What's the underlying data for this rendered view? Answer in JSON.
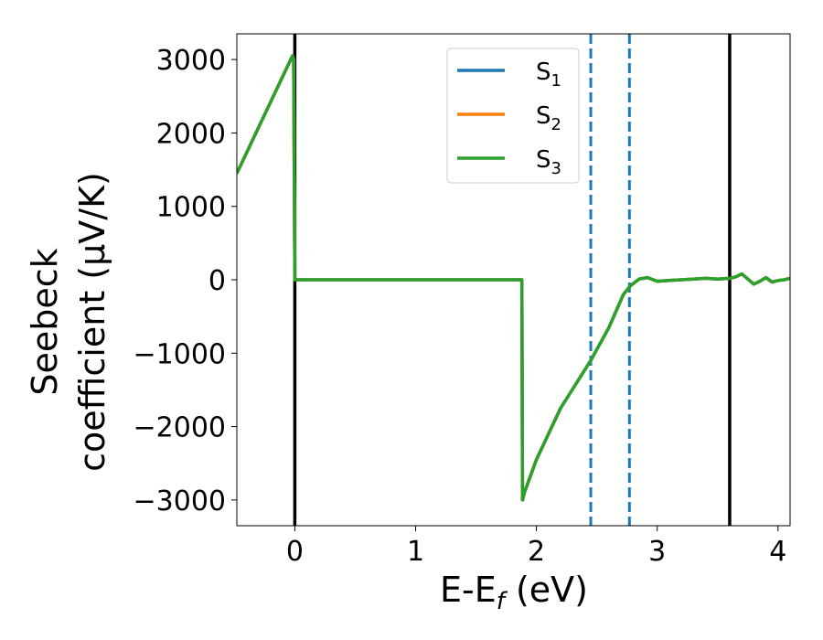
{
  "chart_data": {
    "type": "line",
    "xlabel": "E-E",
    "xlabel_sub": "f",
    "xlabel_unit": " (eV)",
    "ylabel_line1": "Seebeck",
    "ylabel_line2": "coefficient  (μV/K)",
    "xlim": [
      -0.48,
      4.1
    ],
    "ylim": [
      -3350,
      3350
    ],
    "xticks": [
      0,
      1,
      2,
      3,
      4
    ],
    "xtick_labels": [
      "0",
      "1",
      "2",
      "3",
      "4"
    ],
    "yticks": [
      3000,
      2000,
      1000,
      0,
      -1000,
      -2000,
      -3000
    ],
    "ytick_labels": [
      "3000",
      "2000",
      "1000",
      "0",
      "−1000",
      "−2000",
      "−3000"
    ],
    "grid": false,
    "legend_position": "top-right",
    "series": [
      {
        "name": "S",
        "name_sub": "1",
        "color": "#1f77b4",
        "x": [
          -0.48,
          -0.02,
          -0.01,
          0.0,
          1.88,
          1.885,
          1.9,
          2.0,
          2.2,
          2.45,
          2.6,
          2.72,
          2.78,
          2.85,
          2.92,
          3.0,
          3.1,
          3.2,
          3.3,
          3.4,
          3.5,
          3.6,
          3.65,
          3.7,
          3.75,
          3.8,
          3.85,
          3.9,
          3.95,
          4.0,
          4.05,
          4.1
        ],
        "y": [
          1450,
          3050,
          3000,
          0,
          0,
          -3000,
          -2900,
          -2450,
          -1750,
          -1100,
          -650,
          -200,
          -80,
          10,
          30,
          -20,
          -10,
          0,
          10,
          20,
          10,
          20,
          40,
          80,
          10,
          -60,
          -20,
          30,
          -30,
          -10,
          0,
          20
        ]
      },
      {
        "name": "S",
        "name_sub": "2",
        "color": "#ff7f0e",
        "x": [
          -0.48,
          -0.02,
          -0.01,
          0.0,
          1.88,
          1.885,
          1.9,
          2.0,
          2.2,
          2.45,
          2.6,
          2.72,
          2.78,
          2.85,
          2.92,
          3.0,
          3.1,
          3.2,
          3.3,
          3.4,
          3.5,
          3.6,
          3.65,
          3.7,
          3.75,
          3.8,
          3.85,
          3.9,
          3.95,
          4.0,
          4.05,
          4.1
        ],
        "y": [
          1450,
          3050,
          3000,
          0,
          0,
          -3000,
          -2900,
          -2450,
          -1750,
          -1100,
          -650,
          -200,
          -80,
          10,
          30,
          -20,
          -10,
          0,
          10,
          20,
          10,
          20,
          40,
          80,
          10,
          -60,
          -20,
          30,
          -30,
          -10,
          0,
          20
        ]
      },
      {
        "name": "S",
        "name_sub": "3",
        "color": "#2ca02c",
        "x": [
          -0.48,
          -0.02,
          -0.01,
          0.0,
          1.88,
          1.885,
          1.9,
          2.0,
          2.2,
          2.45,
          2.6,
          2.72,
          2.78,
          2.85,
          2.92,
          3.0,
          3.1,
          3.2,
          3.3,
          3.4,
          3.5,
          3.6,
          3.65,
          3.7,
          3.75,
          3.8,
          3.85,
          3.9,
          3.95,
          4.0,
          4.05,
          4.1
        ],
        "y": [
          1450,
          3050,
          3000,
          0,
          0,
          -3000,
          -2900,
          -2450,
          -1750,
          -1100,
          -650,
          -200,
          -80,
          10,
          30,
          -20,
          -10,
          0,
          10,
          20,
          10,
          20,
          40,
          80,
          10,
          -60,
          -20,
          30,
          -30,
          -10,
          0,
          20
        ]
      }
    ],
    "vertical_lines": [
      {
        "x": 0.0,
        "style": "solid",
        "color": "#000000"
      },
      {
        "x": 3.6,
        "style": "solid",
        "color": "#000000"
      },
      {
        "x": 2.45,
        "style": "dashed",
        "color": "#1f77b4"
      },
      {
        "x": 2.77,
        "style": "dashed",
        "color": "#1f77b4"
      }
    ]
  }
}
